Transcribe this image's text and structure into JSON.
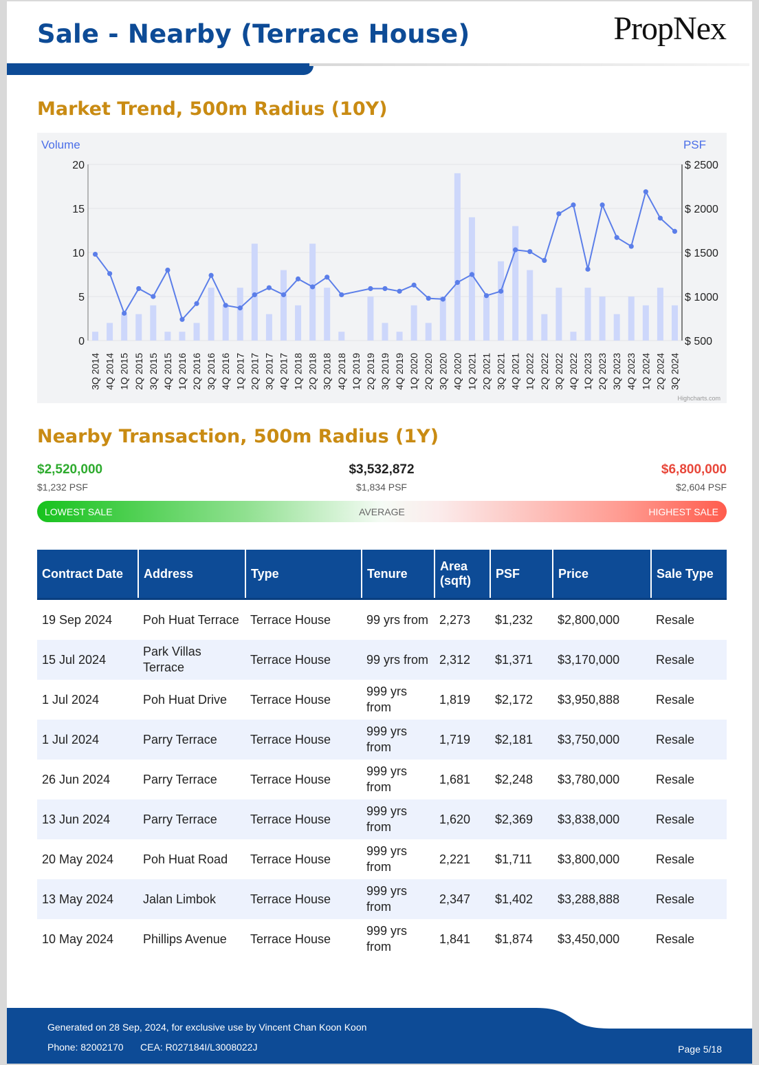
{
  "header": {
    "title": "Sale - Nearby (Terrace House)",
    "logo": "PropNex",
    "accent_color": "#0d4b96"
  },
  "market_trend": {
    "title": "Market Trend, 500m Radius (10Y)"
  },
  "chart_data": {
    "type": "bar",
    "left_axis_label": "Volume",
    "right_axis_label": "PSF",
    "left_ylim": [
      0,
      20
    ],
    "left_ticks": [
      "20",
      "15",
      "10",
      "5",
      "0"
    ],
    "right_ylim": [
      500,
      2500
    ],
    "right_ticks": [
      "$ 2500",
      "$ 2000",
      "$ 1500",
      "$ 1000",
      "$ 500"
    ],
    "grid": true,
    "credit": "Highcharts.com",
    "categories": [
      "3Q 2014",
      "4Q 2014",
      "1Q 2015",
      "2Q 2015",
      "3Q 2015",
      "4Q 2015",
      "1Q 2016",
      "2Q 2016",
      "3Q 2016",
      "4Q 2016",
      "1Q 2017",
      "2Q 2017",
      "3Q 2017",
      "4Q 2017",
      "1Q 2018",
      "2Q 2018",
      "3Q 2018",
      "4Q 2018",
      "1Q 2019",
      "2Q 2019",
      "3Q 2019",
      "4Q 2019",
      "1Q 2020",
      "2Q 2020",
      "3Q 2020",
      "4Q 2020",
      "1Q 2021",
      "2Q 2021",
      "3Q 2021",
      "4Q 2021",
      "1Q 2022",
      "2Q 2022",
      "3Q 2022",
      "4Q 2022",
      "1Q 2023",
      "2Q 2023",
      "3Q 2023",
      "4Q 2023",
      "1Q 2024",
      "2Q 2024",
      "3Q 2024"
    ],
    "series": [
      {
        "type": "column",
        "axis": "left",
        "color": "#cdd7fb",
        "values": [
          1,
          2,
          3,
          3,
          4,
          1,
          1,
          2,
          6,
          4,
          6,
          11,
          3,
          8,
          4,
          11,
          6,
          1,
          0,
          5,
          2,
          1,
          4,
          2,
          5,
          19,
          14,
          5,
          9,
          13,
          8,
          3,
          6,
          1,
          6,
          5,
          3,
          5,
          4,
          6,
          4
        ]
      },
      {
        "type": "line",
        "axis": "right",
        "color": "#5b7ee9",
        "values": [
          1480,
          1260,
          810,
          1090,
          1000,
          1300,
          740,
          920,
          1240,
          900,
          870,
          1020,
          1100,
          1020,
          1200,
          1110,
          1220,
          1020,
          null,
          1090,
          1090,
          1060,
          1130,
          980,
          970,
          1160,
          1250,
          1010,
          1060,
          1530,
          1510,
          1410,
          1940,
          2040,
          1310,
          2040,
          1670,
          1570,
          2190,
          1890,
          1740
        ]
      }
    ]
  },
  "nearby": {
    "title": "Nearby Transaction, 500m Radius (1Y)",
    "lowest": {
      "price": "$2,520,000",
      "psf": "$1,232 PSF",
      "label": "LOWEST SALE",
      "color": "#2eab2e"
    },
    "average": {
      "price": "$3,532,872",
      "psf": "$1,834 PSF",
      "label": "AVERAGE"
    },
    "highest": {
      "price": "$6,800,000",
      "psf": "$2,604 PSF",
      "label": "HIGHEST SALE",
      "color": "#e8473a"
    }
  },
  "table": {
    "headers": [
      "Contract Date",
      "Address",
      "Type",
      "Tenure",
      "Area (sqft)",
      "PSF",
      "Price",
      "Sale Type"
    ],
    "rows": [
      [
        "19 Sep 2024",
        "Poh Huat Terrace",
        "Terrace House",
        "99 yrs from",
        "2,273",
        "$1,232",
        "$2,800,000",
        "Resale"
      ],
      [
        "15 Jul 2024",
        "Park Villas Terrace",
        "Terrace House",
        "99 yrs from",
        "2,312",
        "$1,371",
        "$3,170,000",
        "Resale"
      ],
      [
        "1 Jul 2024",
        "Poh Huat Drive",
        "Terrace House",
        "999 yrs from",
        "1,819",
        "$2,172",
        "$3,950,888",
        "Resale"
      ],
      [
        "1 Jul 2024",
        "Parry Terrace",
        "Terrace House",
        "999 yrs from",
        "1,719",
        "$2,181",
        "$3,750,000",
        "Resale"
      ],
      [
        "26 Jun 2024",
        "Parry Terrace",
        "Terrace House",
        "999 yrs from",
        "1,681",
        "$2,248",
        "$3,780,000",
        "Resale"
      ],
      [
        "13 Jun 2024",
        "Parry Terrace",
        "Terrace House",
        "999 yrs from",
        "1,620",
        "$2,369",
        "$3,838,000",
        "Resale"
      ],
      [
        "20 May 2024",
        "Poh Huat Road",
        "Terrace House",
        "999 yrs from",
        "2,221",
        "$1,711",
        "$3,800,000",
        "Resale"
      ],
      [
        "13 May 2024",
        "Jalan Limbok",
        "Terrace House",
        "999 yrs from",
        "2,347",
        "$1,402",
        "$3,288,888",
        "Resale"
      ],
      [
        "10 May 2024",
        "Phillips Avenue",
        "Terrace House",
        "999 yrs from",
        "1,841",
        "$1,874",
        "$3,450,000",
        "Resale"
      ]
    ]
  },
  "footer": {
    "generated": "Generated on 28 Sep, 2024, for exclusive use by Vincent Chan Koon Koon",
    "phone": "Phone: 82002170",
    "cea": "CEA: R027184I/L3008022J",
    "page": "Page 5/18"
  }
}
